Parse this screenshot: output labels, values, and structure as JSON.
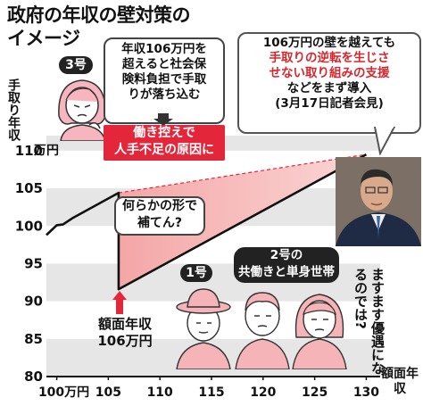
{
  "title_lines": [
    "政府の年収の壁対策の",
    "イメージ"
  ],
  "ylabel": "手取り年収",
  "unit_label": "万円",
  "xlabel": "額面年収",
  "callout_no3": {
    "badge": "3号",
    "text": [
      "年収106万円を",
      "超えると社会保",
      "険料負担で手取",
      "りが落ち込む"
    ]
  },
  "red_box": [
    "働き控えで",
    "人手不足の原因に"
  ],
  "callout_pm": {
    "lines": [
      {
        "text": "106万円の壁を越えても",
        "color": "black"
      },
      {
        "text": "手取りの逆転を生じさ",
        "color": "red"
      },
      {
        "text": "せない取り組みの支援",
        "color": "red"
      },
      {
        "text": "などをまず導入",
        "color": "black"
      },
      {
        "text": "(3月17日記者会見)",
        "color": "black"
      }
    ]
  },
  "pink_callout": [
    "何らかの形で",
    "補てん?"
  ],
  "amount_label": [
    "額面年収",
    "106万円"
  ],
  "badge_no1": "1号",
  "badge_no2": [
    "2号の",
    "共働きと単身世帯"
  ],
  "vertical_note": "ますます優遇になるのでは?",
  "colors": {
    "line": "#111111",
    "fill": "#f4a6a6",
    "fill_light": "#fbd6d6",
    "arrow": "#e4263a",
    "band": "#e6e6e6",
    "red_box": "#e4263a"
  },
  "chart_data": {
    "type": "line",
    "title": "政府の年収の壁対策のイメージ",
    "xlabel": "額面年収",
    "ylabel": "手取り年収",
    "x_tick_labels": [
      "100万円",
      "105",
      "110",
      "115",
      "120",
      "125",
      "130"
    ],
    "y_tick_labels": [
      "80",
      "85",
      "90",
      "95",
      "100",
      "105",
      "110"
    ],
    "x_ticks": [
      100,
      105,
      110,
      115,
      120,
      125,
      130
    ],
    "y_ticks": [
      80,
      85,
      90,
      95,
      100,
      105,
      110
    ],
    "xlim": [
      99,
      131
    ],
    "ylim": [
      80,
      112
    ],
    "series": [
      {
        "x": [
          99,
          100,
          100.6,
          101.6,
          106,
          106,
          130
        ],
        "y": [
          98.8,
          100.1,
          100.2,
          101.1,
          104.4,
          91.6,
          109.5
        ]
      }
    ],
    "gap_region": {
      "x": [
        106,
        130
      ],
      "y_from": [
        104.4,
        109.5
      ],
      "y_to": [
        91.6,
        109.5
      ]
    },
    "annotation_x": 106,
    "grid": "horizontal-bands"
  }
}
